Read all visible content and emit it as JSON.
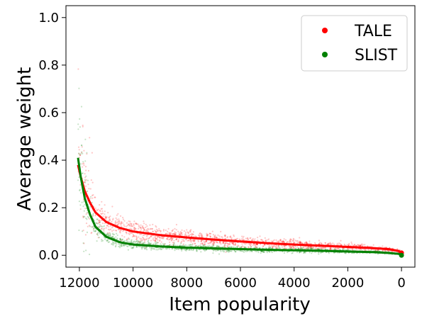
{
  "chart_data": {
    "type": "scatter",
    "title": "",
    "xlabel": "Item popularity",
    "ylabel": "Average weight",
    "x_reversed": true,
    "xlim": [
      12500,
      -500
    ],
    "ylim": [
      -0.05,
      1.05
    ],
    "xticks": [
      12000,
      10000,
      8000,
      6000,
      4000,
      2000,
      0
    ],
    "yticks": [
      0.0,
      0.2,
      0.4,
      0.6,
      0.8,
      1.0
    ],
    "xtick_labels": [
      "12000",
      "10000",
      "8000",
      "6000",
      "4000",
      "2000",
      "0"
    ],
    "ytick_labels": [
      "0.0",
      "0.2",
      "0.4",
      "0.6",
      "0.8",
      "1.0"
    ],
    "grid": false,
    "legend_position": "top-right",
    "series": [
      {
        "name": "TALE",
        "color": "#ff0000",
        "trend": [
          [
            12050,
            0.38
          ],
          [
            11950,
            0.33
          ],
          [
            11800,
            0.27
          ],
          [
            11600,
            0.22
          ],
          [
            11400,
            0.18
          ],
          [
            11000,
            0.14
          ],
          [
            10500,
            0.115
          ],
          [
            10000,
            0.1
          ],
          [
            9000,
            0.085
          ],
          [
            8000,
            0.075
          ],
          [
            7000,
            0.066
          ],
          [
            6000,
            0.058
          ],
          [
            5000,
            0.051
          ],
          [
            4000,
            0.045
          ],
          [
            3000,
            0.04
          ],
          [
            2000,
            0.035
          ],
          [
            1000,
            0.03
          ],
          [
            500,
            0.026
          ],
          [
            100,
            0.018
          ],
          [
            0,
            0.01
          ]
        ]
      },
      {
        "name": "SLIST",
        "color": "#008000",
        "trend": [
          [
            12050,
            0.41
          ],
          [
            11950,
            0.33
          ],
          [
            11800,
            0.24
          ],
          [
            11600,
            0.17
          ],
          [
            11400,
            0.12
          ],
          [
            11000,
            0.078
          ],
          [
            10500,
            0.055
          ],
          [
            10000,
            0.045
          ],
          [
            9000,
            0.037
          ],
          [
            8000,
            0.032
          ],
          [
            7000,
            0.029
          ],
          [
            6000,
            0.026
          ],
          [
            5000,
            0.023
          ],
          [
            4000,
            0.021
          ],
          [
            3000,
            0.019
          ],
          [
            2000,
            0.016
          ],
          [
            1000,
            0.013
          ],
          [
            500,
            0.01
          ],
          [
            100,
            0.006
          ],
          [
            0,
            0.0
          ]
        ]
      }
    ]
  }
}
